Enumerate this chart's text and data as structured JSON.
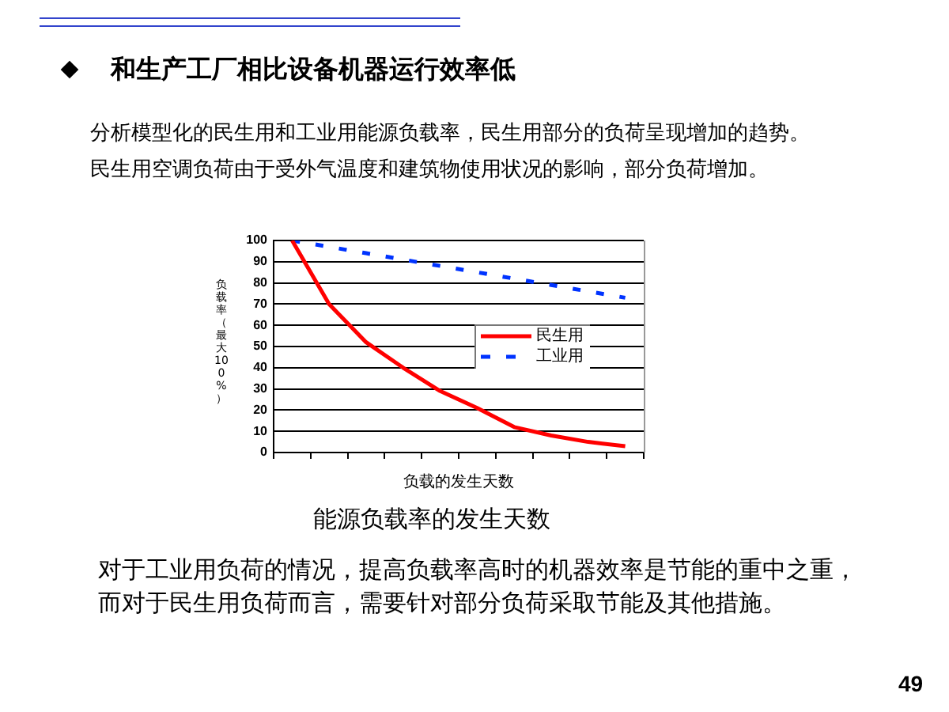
{
  "chart_data": {
    "type": "line",
    "title": "和生产工厂相比设备机器运行效率低",
    "subtitle": "分析模型化的民生用和工业用能源负载率，民生用部分的负荷呈现增加的趋势。民生用空调负荷由于受外气温度和建筑物使用状况的影响，部分负荷增加。",
    "xlabel": "负载的发生天数",
    "ylabel": "负载率（最大100%）",
    "categories": [
      null,
      null,
      null,
      null,
      null,
      null,
      null,
      null,
      null,
      null
    ],
    "series": [
      {
        "name": "民生用",
        "color": "#ff0000",
        "line_style": "solid",
        "values": [
          100,
          70,
          52,
          40,
          29,
          21,
          12,
          8,
          5,
          3
        ]
      },
      {
        "name": "工业用",
        "color": "#0033ff",
        "line_style": "dashed",
        "values": [
          100,
          97,
          94,
          91,
          88,
          85,
          82,
          79,
          76,
          73
        ]
      }
    ],
    "ylim": [
      0,
      100
    ],
    "yticks": [
      0,
      10,
      20,
      30,
      40,
      50,
      60,
      70,
      80,
      90,
      100
    ],
    "grid": "y",
    "legend": "right",
    "annotations": [
      "能源负载率的发生天数",
      "对于工业用负荷的情况，提高负载率高时的机器效率是节能的重中之重，而对于民生用负荷而言，需要针对部分负荷采取节能及其他措施。",
      "49"
    ]
  }
}
